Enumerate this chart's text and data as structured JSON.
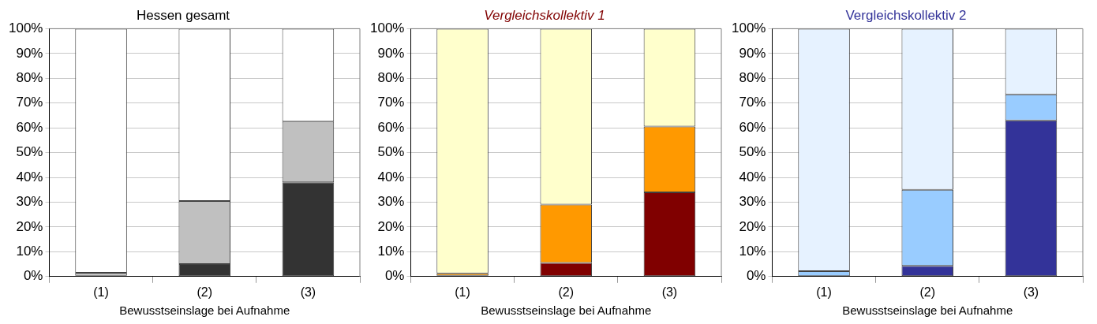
{
  "chart_data": [
    {
      "type": "bar",
      "title": "Hessen gesamt",
      "xlabel": "Bewusstseinslage bei Aufnahme",
      "categories": [
        "(1)",
        "(2)",
        "(3)"
      ],
      "stacked": true,
      "grid": "y",
      "legend": false,
      "ylim": [
        0,
        100
      ],
      "yticks": [
        {
          "value": 0,
          "label": "0%"
        },
        {
          "value": 10,
          "label": "10%"
        },
        {
          "value": 20,
          "label": "20%"
        },
        {
          "value": 30,
          "label": "30%"
        },
        {
          "value": 40,
          "label": "40%"
        },
        {
          "value": 50,
          "label": "50%"
        },
        {
          "value": 60,
          "label": "60%"
        },
        {
          "value": 70,
          "label": "70%"
        },
        {
          "value": 80,
          "label": "80%"
        },
        {
          "value": 90,
          "label": "90%"
        },
        {
          "value": 100,
          "label": "100%"
        }
      ],
      "series": [
        {
          "color": "#333333",
          "values": [
            0.3,
            5,
            38
          ]
        },
        {
          "color": "#c0c0c0",
          "values": [
            1.2,
            25.5,
            24.5
          ]
        },
        {
          "color": "#ffffff",
          "values": [
            98.5,
            69.5,
            37.5
          ]
        }
      ]
    },
    {
      "type": "bar",
      "title": "Vergleichskollektiv 1",
      "xlabel": "Bewusstseinslage bei Aufnahme",
      "categories": [
        "(1)",
        "(2)",
        "(3)"
      ],
      "stacked": true,
      "grid": "y",
      "legend": false,
      "ylim": [
        0,
        100
      ],
      "yticks": [
        {
          "value": 0,
          "label": "0%"
        },
        {
          "value": 10,
          "label": "10%"
        },
        {
          "value": 20,
          "label": "20%"
        },
        {
          "value": 30,
          "label": "30%"
        },
        {
          "value": 40,
          "label": "40%"
        },
        {
          "value": 50,
          "label": "50%"
        },
        {
          "value": 60,
          "label": "60%"
        },
        {
          "value": 70,
          "label": "70%"
        },
        {
          "value": 80,
          "label": "80%"
        },
        {
          "value": 90,
          "label": "90%"
        },
        {
          "value": 100,
          "label": "100%"
        }
      ],
      "series": [
        {
          "color": "#800000",
          "values": [
            0.3,
            5.5,
            34
          ]
        },
        {
          "color": "#ff9900",
          "values": [
            1,
            23.5,
            26.5
          ]
        },
        {
          "color": "#ffffcc",
          "values": [
            98.7,
            71,
            39.5
          ]
        }
      ]
    },
    {
      "type": "bar",
      "title": "Vergleichskollektiv 2",
      "xlabel": "Bewusstseinslage bei Aufnahme",
      "categories": [
        "(1)",
        "(2)",
        "(3)"
      ],
      "stacked": true,
      "grid": "y",
      "legend": false,
      "ylim": [
        0,
        100
      ],
      "yticks": [
        {
          "value": 0,
          "label": "0%"
        },
        {
          "value": 10,
          "label": "10%"
        },
        {
          "value": 20,
          "label": "20%"
        },
        {
          "value": 30,
          "label": "30%"
        },
        {
          "value": 40,
          "label": "40%"
        },
        {
          "value": 50,
          "label": "50%"
        },
        {
          "value": 60,
          "label": "60%"
        },
        {
          "value": 70,
          "label": "70%"
        },
        {
          "value": 80,
          "label": "80%"
        },
        {
          "value": 90,
          "label": "90%"
        },
        {
          "value": 100,
          "label": "100%"
        }
      ],
      "series": [
        {
          "color": "#333399",
          "values": [
            0.2,
            4.3,
            63
          ]
        },
        {
          "color": "#99ccff",
          "values": [
            2,
            30.7,
            10.5
          ]
        },
        {
          "color": "#e6f2ff",
          "values": [
            97.8,
            65,
            26.5
          ]
        }
      ]
    }
  ]
}
